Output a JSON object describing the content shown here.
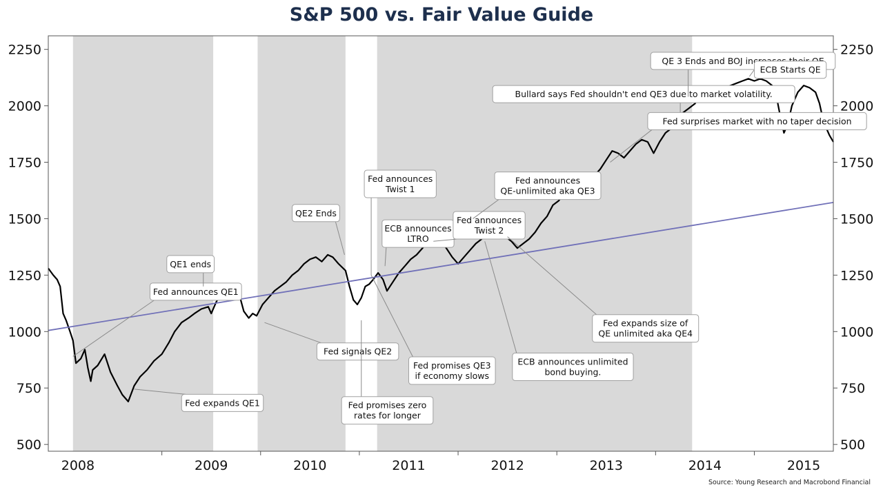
{
  "chart_data": {
    "type": "line",
    "title": "S&P 500 vs. Fair Value Guide",
    "source": "Source: Young Research and Macrobond Financial",
    "xlim": [
      2007.85,
      2015.8
    ],
    "ylim": [
      470,
      2310
    ],
    "x_tick_labels": [
      "2008",
      "2009",
      "2010",
      "2011",
      "2012",
      "2013",
      "2014",
      "2015"
    ],
    "y_ticks": [
      500,
      750,
      1000,
      1250,
      1500,
      1750,
      2000,
      2250
    ],
    "grid": false,
    "shaded_periods": [
      [
        2008.1,
        2009.52
      ],
      [
        2009.97,
        2010.86
      ],
      [
        2011.18,
        2014.37
      ]
    ],
    "series": [
      {
        "color": "#000000",
        "points": [
          [
            2007.85,
            1280
          ],
          [
            2007.9,
            1250
          ],
          [
            2007.94,
            1230
          ],
          [
            2007.97,
            1200
          ],
          [
            2008.0,
            1080
          ],
          [
            2008.03,
            1050
          ],
          [
            2008.07,
            1000
          ],
          [
            2008.1,
            960
          ],
          [
            2008.13,
            860
          ],
          [
            2008.18,
            880
          ],
          [
            2008.22,
            920
          ],
          [
            2008.25,
            840
          ],
          [
            2008.28,
            780
          ],
          [
            2008.3,
            830
          ],
          [
            2008.35,
            850
          ],
          [
            2008.42,
            900
          ],
          [
            2008.48,
            820
          ],
          [
            2008.55,
            760
          ],
          [
            2008.6,
            720
          ],
          [
            2008.66,
            690
          ],
          [
            2008.72,
            760
          ],
          [
            2008.78,
            800
          ],
          [
            2008.85,
            830
          ],
          [
            2008.92,
            870
          ],
          [
            2009.0,
            900
          ],
          [
            2009.07,
            950
          ],
          [
            2009.13,
            1000
          ],
          [
            2009.2,
            1040
          ],
          [
            2009.27,
            1060
          ],
          [
            2009.33,
            1080
          ],
          [
            2009.4,
            1100
          ],
          [
            2009.47,
            1110
          ],
          [
            2009.5,
            1080
          ],
          [
            2009.55,
            1130
          ],
          [
            2009.6,
            1170
          ],
          [
            2009.66,
            1200
          ],
          [
            2009.72,
            1210
          ],
          [
            2009.78,
            1170
          ],
          [
            2009.83,
            1090
          ],
          [
            2009.88,
            1060
          ],
          [
            2009.92,
            1080
          ],
          [
            2009.96,
            1070
          ],
          [
            2010.02,
            1120
          ],
          [
            2010.08,
            1150
          ],
          [
            2010.14,
            1180
          ],
          [
            2010.2,
            1200
          ],
          [
            2010.26,
            1220
          ],
          [
            2010.32,
            1250
          ],
          [
            2010.38,
            1270
          ],
          [
            2010.44,
            1300
          ],
          [
            2010.5,
            1320
          ],
          [
            2010.56,
            1330
          ],
          [
            2010.62,
            1310
          ],
          [
            2010.68,
            1340
          ],
          [
            2010.73,
            1330
          ],
          [
            2010.79,
            1300
          ],
          [
            2010.86,
            1270
          ],
          [
            2010.9,
            1200
          ],
          [
            2010.94,
            1140
          ],
          [
            2010.98,
            1120
          ],
          [
            2011.02,
            1150
          ],
          [
            2011.06,
            1200
          ],
          [
            2011.1,
            1210
          ],
          [
            2011.14,
            1230
          ],
          [
            2011.19,
            1260
          ],
          [
            2011.24,
            1230
          ],
          [
            2011.28,
            1180
          ],
          [
            2011.34,
            1220
          ],
          [
            2011.4,
            1260
          ],
          [
            2011.46,
            1290
          ],
          [
            2011.52,
            1320
          ],
          [
            2011.58,
            1340
          ],
          [
            2011.64,
            1370
          ],
          [
            2011.7,
            1400
          ],
          [
            2011.76,
            1380
          ],
          [
            2011.82,
            1400
          ],
          [
            2011.88,
            1370
          ],
          [
            2011.94,
            1330
          ],
          [
            2012.0,
            1300
          ],
          [
            2012.06,
            1330
          ],
          [
            2012.12,
            1360
          ],
          [
            2012.18,
            1390
          ],
          [
            2012.24,
            1410
          ],
          [
            2012.3,
            1440
          ],
          [
            2012.36,
            1460
          ],
          [
            2012.42,
            1440
          ],
          [
            2012.48,
            1420
          ],
          [
            2012.54,
            1400
          ],
          [
            2012.6,
            1370
          ],
          [
            2012.66,
            1390
          ],
          [
            2012.72,
            1410
          ],
          [
            2012.78,
            1440
          ],
          [
            2012.84,
            1480
          ],
          [
            2012.9,
            1510
          ],
          [
            2012.96,
            1560
          ],
          [
            2013.02,
            1580
          ],
          [
            2013.08,
            1620
          ],
          [
            2013.14,
            1650
          ],
          [
            2013.2,
            1680
          ],
          [
            2013.26,
            1640
          ],
          [
            2013.32,
            1650
          ],
          [
            2013.38,
            1690
          ],
          [
            2013.44,
            1720
          ],
          [
            2013.5,
            1760
          ],
          [
            2013.56,
            1800
          ],
          [
            2013.62,
            1790
          ],
          [
            2013.68,
            1770
          ],
          [
            2013.74,
            1800
          ],
          [
            2013.8,
            1830
          ],
          [
            2013.86,
            1850
          ],
          [
            2013.92,
            1840
          ],
          [
            2013.98,
            1790
          ],
          [
            2014.04,
            1840
          ],
          [
            2014.1,
            1880
          ],
          [
            2014.16,
            1900
          ],
          [
            2014.22,
            1950
          ],
          [
            2014.28,
            1970
          ],
          [
            2014.34,
            1990
          ],
          [
            2014.4,
            2010
          ],
          [
            2014.46,
            2060
          ],
          [
            2014.52,
            2070
          ],
          [
            2014.58,
            2060
          ],
          [
            2014.64,
            2050
          ],
          [
            2014.7,
            2080
          ],
          [
            2014.76,
            2090
          ],
          [
            2014.82,
            2100
          ],
          [
            2014.88,
            2110
          ],
          [
            2014.94,
            2120
          ],
          [
            2015.0,
            2110
          ],
          [
            2015.06,
            2120
          ],
          [
            2015.12,
            2110
          ],
          [
            2015.18,
            2090
          ],
          [
            2015.22,
            2050
          ],
          [
            2015.26,
            1960
          ],
          [
            2015.3,
            1880
          ],
          [
            2015.34,
            1920
          ],
          [
            2015.38,
            2000
          ],
          [
            2015.44,
            2060
          ],
          [
            2015.5,
            2090
          ],
          [
            2015.56,
            2080
          ],
          [
            2015.62,
            2060
          ],
          [
            2015.66,
            2010
          ],
          [
            2015.7,
            1930
          ],
          [
            2015.73,
            1900
          ],
          [
            2015.76,
            1870
          ],
          [
            2015.8,
            1840
          ]
        ]
      },
      {
        "color": "#7070b8",
        "points": [
          [
            2007.85,
            1005
          ],
          [
            2015.8,
            1572
          ]
        ]
      }
    ],
    "annotations": [
      {
        "text": [
          "Fed announces QE1"
        ],
        "x": 2008.88,
        "y": 1215,
        "tx": 2008.1,
        "ty": 890
      },
      {
        "text": [
          "Fed expands QE1"
        ],
        "x": 2009.2,
        "y": 722,
        "tx": 2008.72,
        "ty": 745
      },
      {
        "text": [
          "QE1 ends"
        ],
        "x": 2009.05,
        "y": 1337,
        "tx": 2009.42,
        "ty": 1200
      },
      {
        "text": [
          "QE2 Ends"
        ],
        "x": 2010.32,
        "y": 1563,
        "tx": 2010.85,
        "ty": 1340
      },
      {
        "text": [
          "Fed signals QE2"
        ],
        "x": 2010.57,
        "y": 950,
        "tx": 2010.04,
        "ty": 1040
      },
      {
        "text": [
          "Fed announces",
          "Twist 1"
        ],
        "x": 2011.05,
        "y": 1715,
        "tx": 2011.12,
        "ty": 1250
      },
      {
        "text": [
          "ECB announces",
          "LTRO"
        ],
        "x": 2011.23,
        "y": 1495,
        "tx": 2011.26,
        "ty": 1290
      },
      {
        "text": [
          "Fed promises zero",
          "rates for longer"
        ],
        "x": 2010.82,
        "y": 712,
        "tx": 2011.02,
        "ty": 1050
      },
      {
        "text": [
          "Fed promises QE3",
          "if economy slows"
        ],
        "x": 2011.5,
        "y": 888,
        "tx": 2011.12,
        "ty": 1250
      },
      {
        "text": [
          "Fed announces",
          "Twist 2"
        ],
        "x": 2011.95,
        "y": 1532,
        "tx": 2011.75,
        "ty": 1400
      },
      {
        "text": [
          "Fed announces",
          "QE-unlimited aka QE3"
        ],
        "x": 2012.37,
        "y": 1707,
        "tx": 2012.15,
        "ty": 1500
      },
      {
        "text": [
          "ECB announces unlimited",
          "bond buying."
        ],
        "x": 2012.55,
        "y": 905,
        "tx": 2012.27,
        "ty": 1400
      },
      {
        "text": [
          "Fed expands size of",
          "QE unlimited aka QE4"
        ],
        "x": 2013.36,
        "y": 1075,
        "tx": 2012.5,
        "ty": 1420
      },
      {
        "text": [
          "Bullard says Fed shouldn't end QE3 due to market volatility."
        ],
        "x": 2012.35,
        "y": 2090,
        "tx": 2014.25,
        "ty": 1900
      },
      {
        "text": [
          "Fed surprises market with no taper decision"
        ],
        "x": 2013.92,
        "y": 1970,
        "tx": 2013.54,
        "ty": 1750
      },
      {
        "text": [
          "QE 3 Ends and BOJ increases their QE"
        ],
        "x": 2013.95,
        "y": 2237,
        "tx": 2014.33,
        "ty": 2040
      },
      {
        "text": [
          "ECB Starts QE"
        ],
        "x": 2015.0,
        "y": 2198,
        "tx": 2014.95,
        "ty": 2130
      }
    ]
  }
}
